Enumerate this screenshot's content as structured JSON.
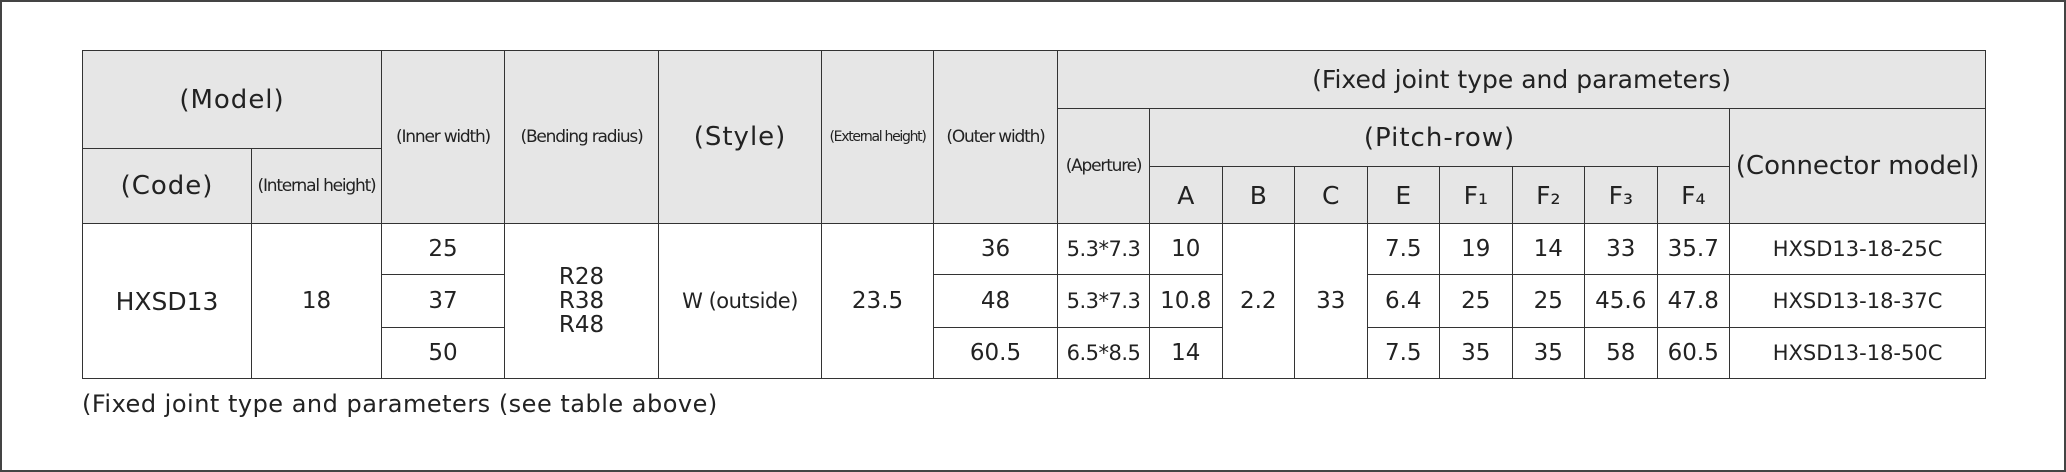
{
  "header": {
    "model": "(Model)",
    "code": "(Code)",
    "internal_height": "(Internal height)",
    "inner_width": "(Inner width)",
    "bending_radius": "(Bending radius)",
    "style": "(Style)",
    "external_height": "(External height)",
    "outer_width": "(Outer width)",
    "fixed_joint": "(Fixed joint type and parameters)",
    "aperture": "(Aperture)",
    "pitch_row": "(Pitch-row)",
    "pitch_cols": [
      "A",
      "B",
      "C",
      "E",
      "F₁",
      "F₂",
      "F₃",
      "F₄"
    ],
    "connector_model": "(Connector model)"
  },
  "table": {
    "code": "HXSD13",
    "internal_height": "18",
    "bending_radius": [
      "R28",
      "R38",
      "R48"
    ],
    "style": "W (outside)",
    "external_height": "23.5",
    "b": "2.2",
    "c": "33",
    "rows": [
      [
        "25",
        "36",
        "5.3*7.3",
        "10",
        "7.5",
        "19",
        "14",
        "33",
        "35.7",
        "HXSD13-18-25C"
      ],
      [
        "37",
        "48",
        "5.3*7.3",
        "10.8",
        "6.4",
        "25",
        "25",
        "45.6",
        "47.8",
        "HXSD13-18-37C"
      ],
      [
        "50",
        "60.5",
        "6.5*8.5",
        "14",
        "7.5",
        "35",
        "35",
        "58",
        "60.5",
        "HXSD13-18-50C"
      ]
    ]
  },
  "caption": "(Fixed joint type and parameters (see table above)"
}
